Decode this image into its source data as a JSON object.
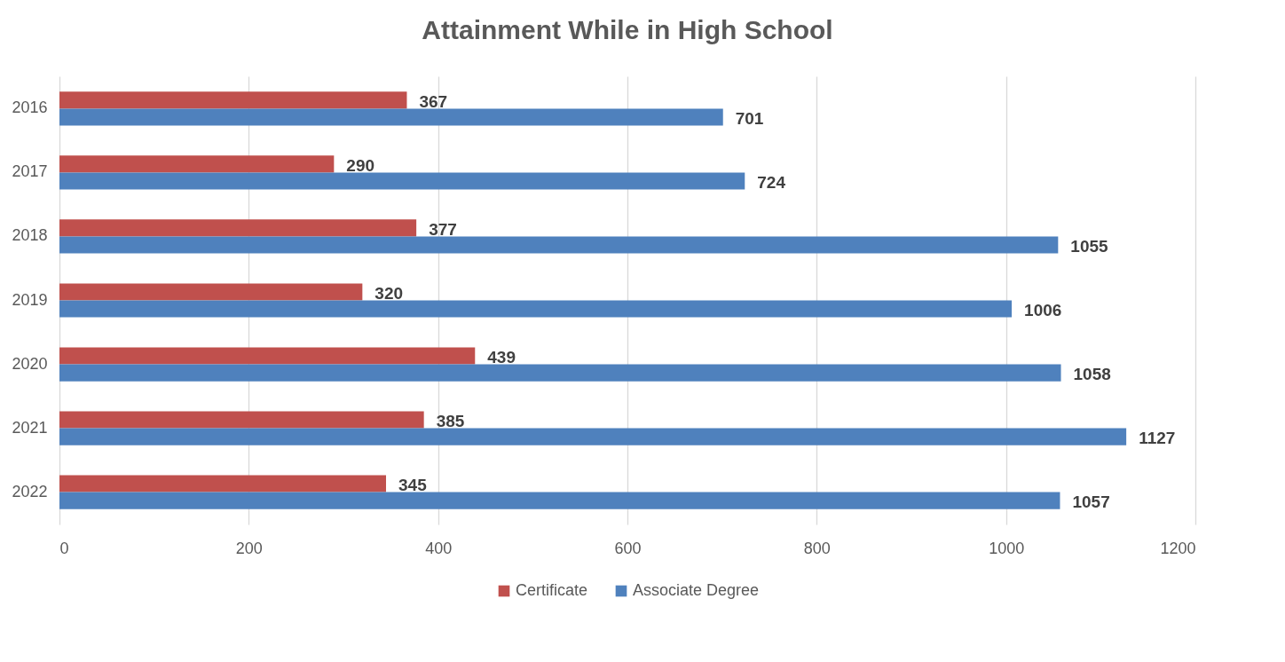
{
  "chart_data": {
    "type": "bar",
    "orientation": "horizontal",
    "title": "Attainment While in High School",
    "categories": [
      "2016",
      "2017",
      "2018",
      "2019",
      "2020",
      "2021",
      "2022"
    ],
    "series": [
      {
        "name": "Certificate",
        "color": "#c0504d",
        "values": [
          367,
          290,
          377,
          320,
          439,
          385,
          345
        ]
      },
      {
        "name": "Associate Degree",
        "color": "#4f81bd",
        "values": [
          701,
          724,
          1055,
          1006,
          1058,
          1127,
          1057
        ]
      }
    ],
    "xlim": [
      0,
      1200
    ],
    "xticks": [
      0,
      200,
      400,
      600,
      800,
      1000,
      1200
    ],
    "grid": "x",
    "legend": "bottom",
    "data_labels": true
  }
}
